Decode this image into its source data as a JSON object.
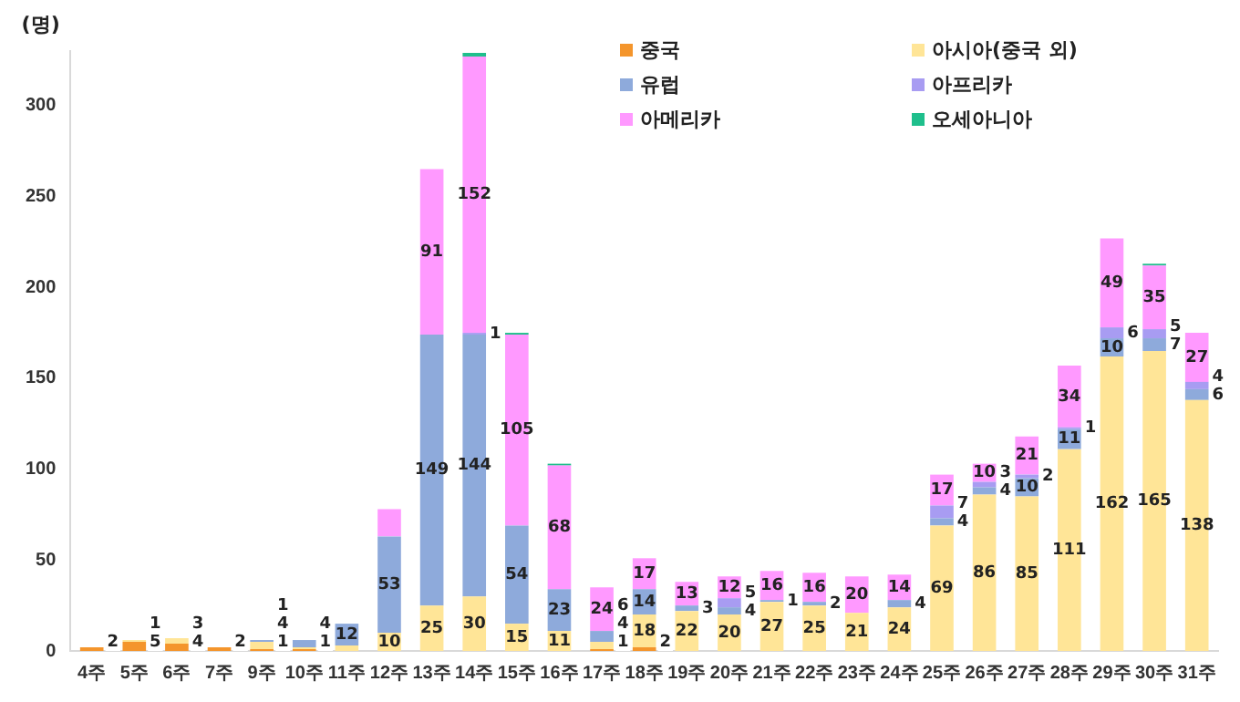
{
  "chart_data": {
    "type": "bar",
    "stacked": true,
    "ylabel": "(명)",
    "ylim": [
      0,
      330
    ],
    "yticks": [
      0,
      50,
      100,
      150,
      200,
      250,
      300
    ],
    "grid": false,
    "legend": "top right",
    "categories": [
      "4주",
      "5주",
      "6주",
      "7주",
      "9주",
      "10주",
      "11주",
      "12주",
      "13주",
      "14주",
      "15주",
      "16주",
      "17주",
      "18주",
      "19주",
      "20주",
      "21주",
      "22주",
      "23주",
      "24주",
      "25주",
      "26주",
      "27주",
      "28주",
      "29주",
      "30주",
      "31주"
    ],
    "series": [
      {
        "name": "중국",
        "color": "#f4952c",
        "values": [
          2,
          5,
          4,
          2,
          1,
          1,
          null,
          null,
          null,
          null,
          null,
          null,
          1,
          2,
          null,
          null,
          null,
          null,
          null,
          null,
          null,
          null,
          null,
          null,
          null,
          null,
          null
        ],
        "value_labels": [
          "2",
          "5",
          "4",
          "2",
          "1",
          "1",
          null,
          null,
          null,
          null,
          null,
          null,
          "1",
          "2",
          null,
          null,
          null,
          null,
          null,
          null,
          null,
          null,
          null,
          null,
          null,
          null,
          null
        ]
      },
      {
        "name": "아시아(중국 외)",
        "color": "#ffe597",
        "values": [
          null,
          1,
          3,
          null,
          4,
          1,
          3,
          10,
          25,
          30,
          15,
          11,
          4,
          18,
          22,
          20,
          27,
          25,
          21,
          24,
          69,
          86,
          85,
          111,
          162,
          165,
          138
        ],
        "value_labels": [
          null,
          "1",
          "3",
          null,
          "4",
          null,
          null,
          "10",
          "25",
          "30",
          "15",
          "11",
          "4",
          "18",
          "22",
          "20",
          "27",
          "25",
          "21",
          "24",
          "69",
          "86",
          "85",
          "111",
          "162",
          "165",
          "138"
        ]
      },
      {
        "name": "유럽",
        "color": "#8eaadb",
        "values": [
          null,
          null,
          null,
          null,
          1,
          4,
          12,
          53,
          149,
          144,
          54,
          23,
          6,
          14,
          3,
          4,
          1,
          2,
          null,
          4,
          4,
          4,
          10,
          11,
          10,
          7,
          6
        ],
        "value_labels": [
          null,
          null,
          null,
          null,
          "1",
          "4",
          "12",
          "53",
          "149",
          "144",
          "54",
          "23",
          "6",
          "14",
          "3",
          "4",
          "1",
          "2",
          null,
          "4",
          "4",
          "4",
          "10",
          "11",
          "10",
          "7",
          "6"
        ]
      },
      {
        "name": "아프리카",
        "color": "#a89cf2",
        "values": [
          null,
          null,
          null,
          null,
          null,
          null,
          null,
          null,
          null,
          1,
          null,
          null,
          null,
          null,
          null,
          5,
          null,
          null,
          null,
          null,
          7,
          3,
          2,
          1,
          6,
          5,
          4
        ],
        "value_labels": [
          null,
          null,
          null,
          null,
          null,
          null,
          null,
          null,
          null,
          "1",
          null,
          null,
          null,
          null,
          null,
          "5",
          null,
          null,
          null,
          null,
          "7",
          "3",
          "2",
          "1",
          "6",
          "5",
          "4"
        ]
      },
      {
        "name": "아메리카",
        "color": "#ff99ff",
        "values": [
          null,
          null,
          null,
          null,
          null,
          null,
          null,
          15,
          91,
          152,
          105,
          68,
          24,
          17,
          13,
          12,
          16,
          16,
          20,
          14,
          17,
          10,
          21,
          34,
          49,
          35,
          27
        ],
        "value_labels": [
          null,
          null,
          null,
          null,
          null,
          null,
          null,
          null,
          "91",
          "152",
          "105",
          "68",
          "24",
          "17",
          "13",
          "12",
          "16",
          "16",
          "20",
          "14",
          "17",
          "10",
          "21",
          "34",
          "49",
          "35",
          "27"
        ]
      },
      {
        "name": "오세아니아",
        "color": "#1fbf8c",
        "values": [
          null,
          null,
          null,
          null,
          null,
          null,
          null,
          null,
          null,
          2,
          1,
          1,
          null,
          null,
          null,
          null,
          null,
          null,
          null,
          null,
          null,
          null,
          null,
          null,
          null,
          1,
          null
        ]
      }
    ]
  }
}
